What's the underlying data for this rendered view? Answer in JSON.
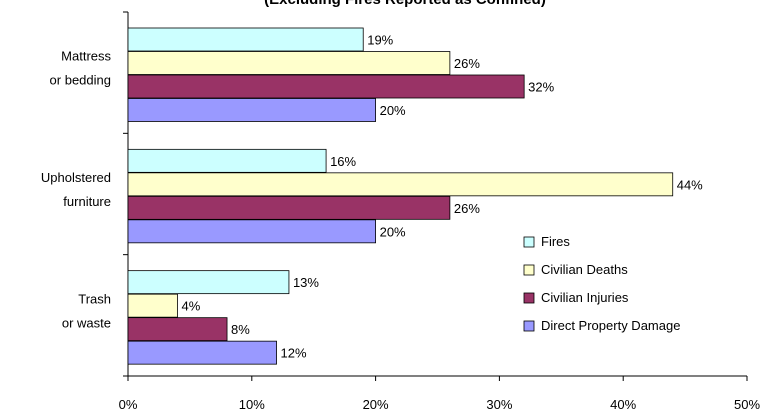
{
  "chart_data": {
    "type": "bar",
    "orientation": "horizontal",
    "title": "(Excluding Fires Reported as Confined)",
    "categories": [
      [
        "Mattress",
        "or bedding"
      ],
      [
        "Upholstered",
        "furniture"
      ],
      [
        "Trash",
        "or waste"
      ]
    ],
    "series": [
      {
        "name": "Fires",
        "values": [
          19,
          16,
          13
        ],
        "color": "#ccffff"
      },
      {
        "name": "Civilian Deaths",
        "values": [
          26,
          44,
          4
        ],
        "color": "#ffffcc"
      },
      {
        "name": "Civilian Injuries",
        "values": [
          32,
          26,
          8
        ],
        "color": "#993366"
      },
      {
        "name": "Direct Property Damage",
        "values": [
          20,
          20,
          12
        ],
        "color": "#9999ff"
      }
    ],
    "value_suffix": "%",
    "xlim": [
      0,
      50
    ],
    "xticks": [
      0,
      10,
      20,
      30,
      40,
      50
    ],
    "xtick_labels": [
      "0%",
      "10%",
      "20%",
      "30%",
      "40%",
      "50%"
    ],
    "grid": false,
    "legend_position": "right"
  }
}
